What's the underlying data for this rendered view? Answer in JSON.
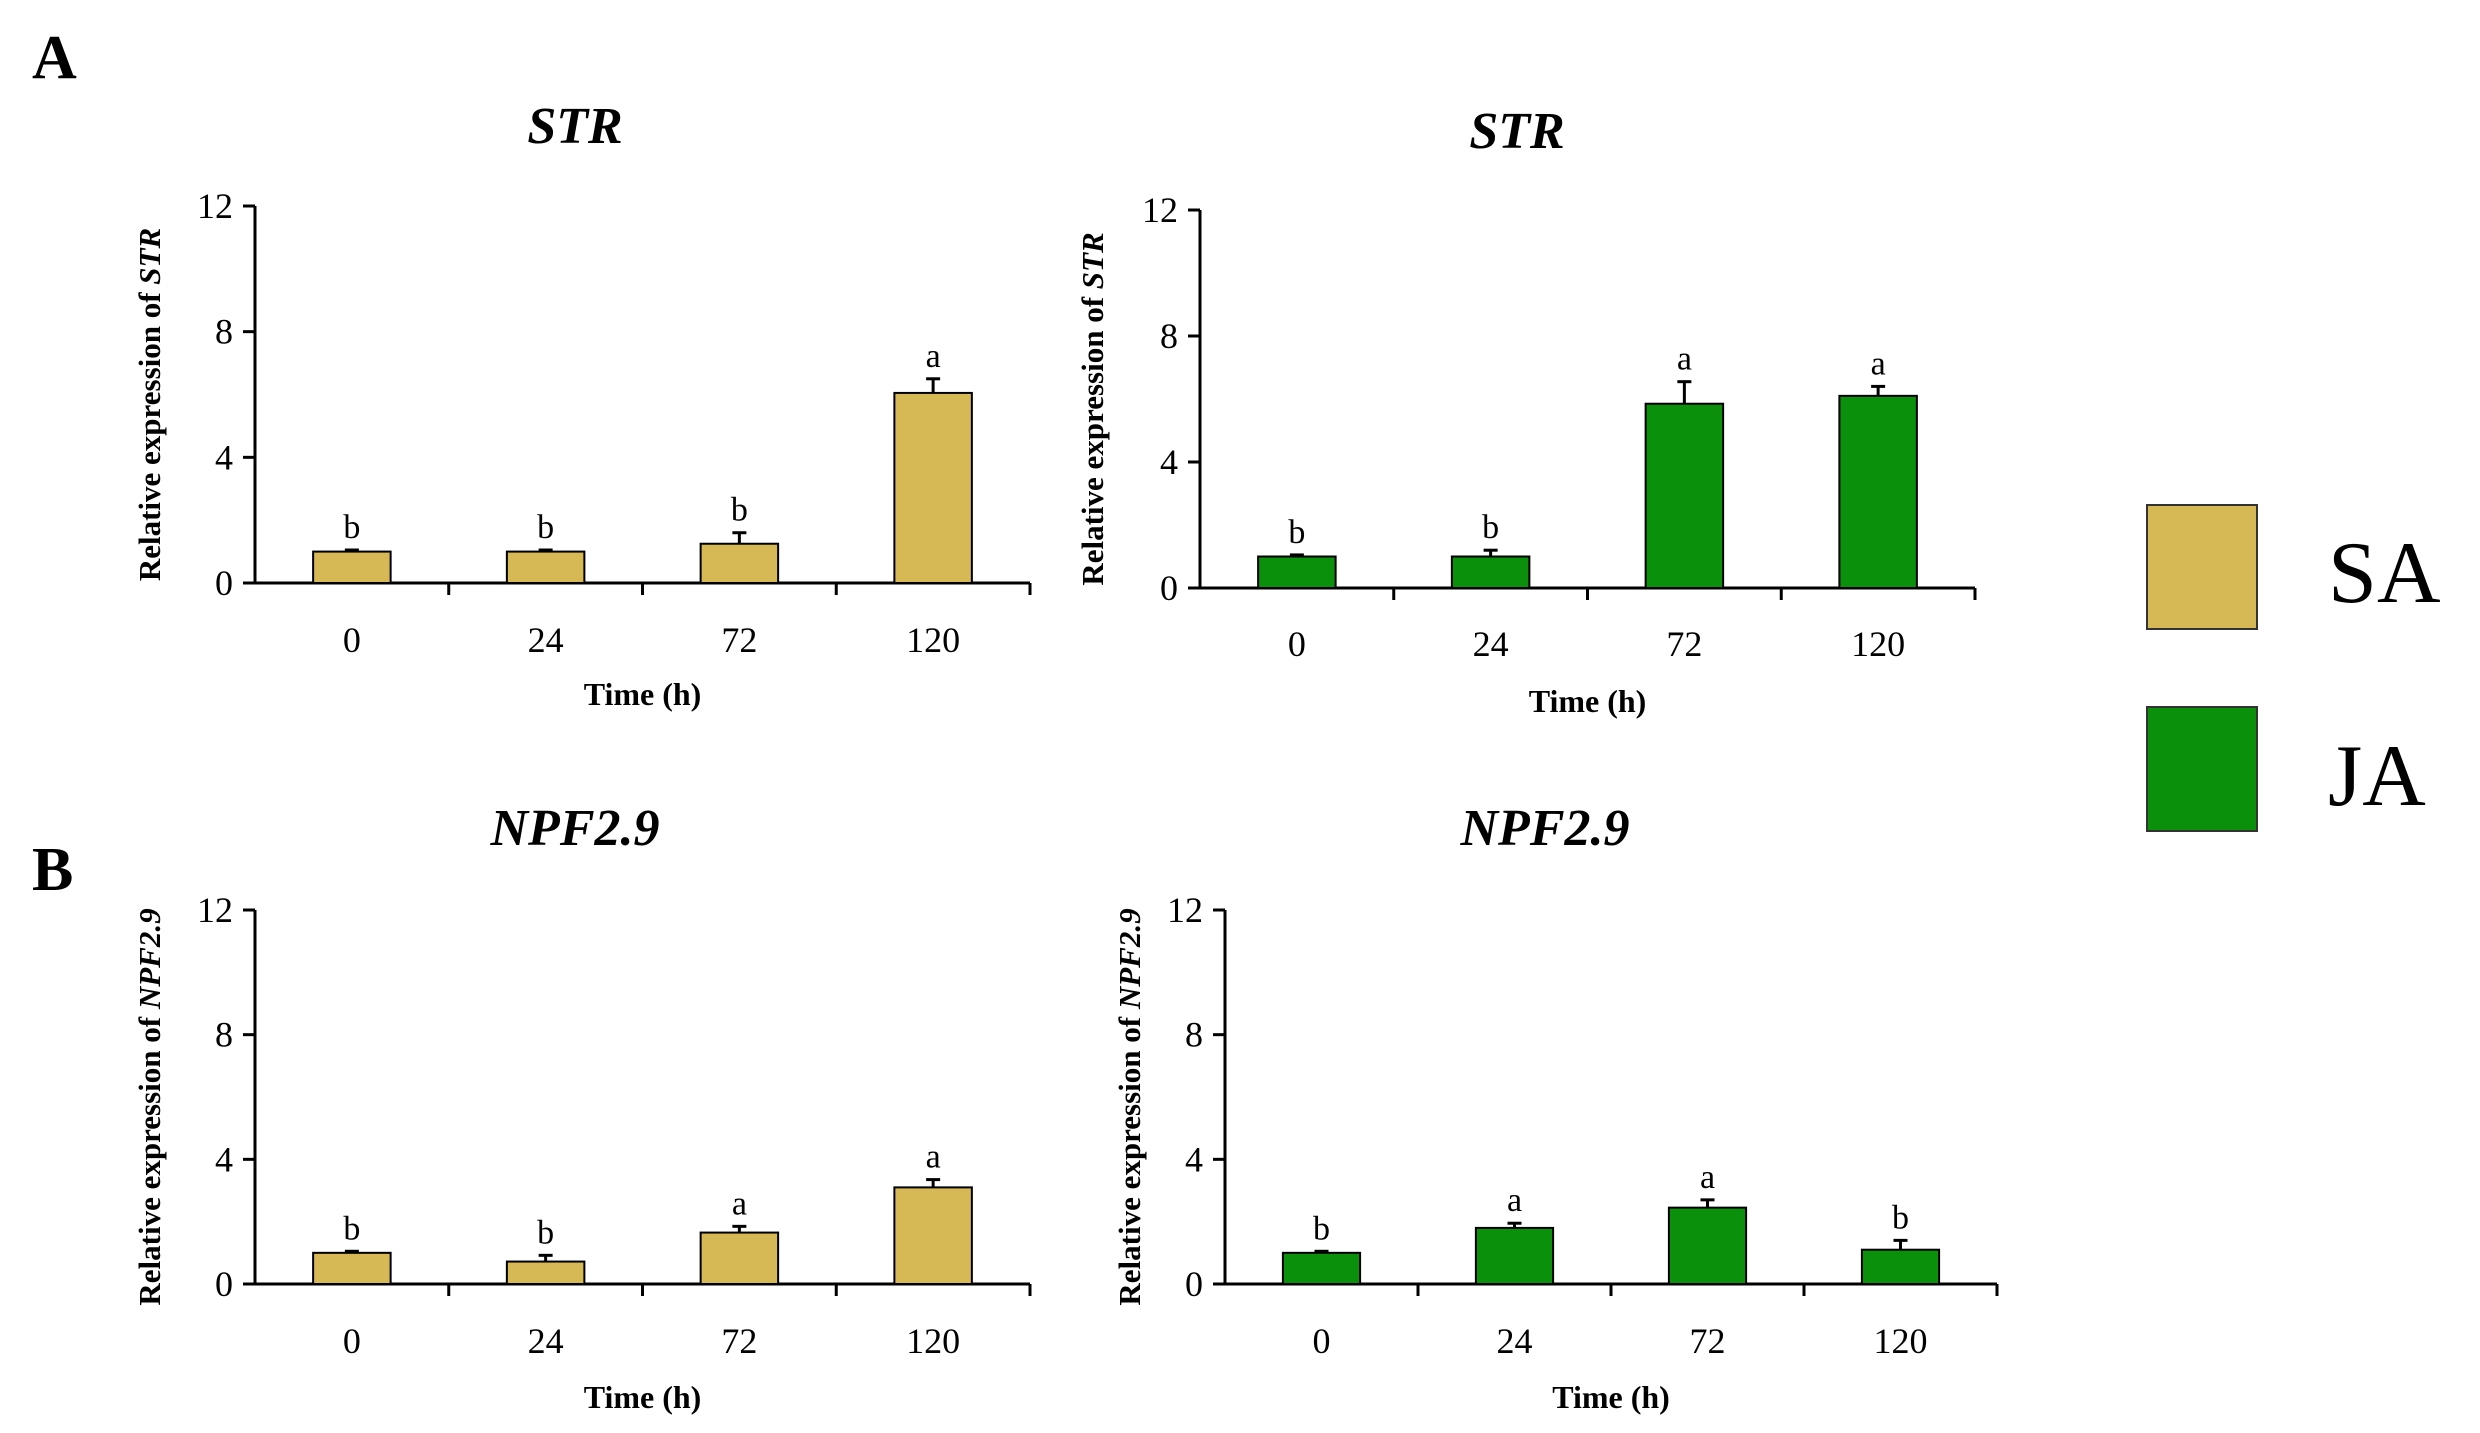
{
  "panels": [
    {
      "letter": "A"
    },
    {
      "letter": "B"
    }
  ],
  "legend": [
    {
      "label": "SA",
      "color": "#d6b855"
    },
    {
      "label": "JA",
      "color": "#0b900b"
    }
  ],
  "colors": {
    "SA": "#d6b855",
    "JA": "#0b900b",
    "axis": "#000000"
  },
  "chart_data": [
    {
      "type": "bar",
      "panel": "A",
      "treatment": "SA",
      "title": "STR",
      "xlabel": "Time (h)",
      "ylabel_prefix": "Relative expression of ",
      "ylabel_gene": "STR",
      "categories": [
        "0",
        "24",
        "72",
        "120"
      ],
      "values": [
        1.0,
        1.0,
        1.25,
        6.05
      ],
      "errors": [
        0.05,
        0.05,
        0.35,
        0.45
      ],
      "significance": [
        "b",
        "b",
        "b",
        "a"
      ],
      "ylim": [
        0,
        12
      ],
      "yticks": [
        0,
        4,
        8,
        12
      ],
      "color": "#d6b855"
    },
    {
      "type": "bar",
      "panel": "A",
      "treatment": "JA",
      "title": "STR",
      "xlabel": "Time (h)",
      "ylabel_prefix": "Relative expression of ",
      "ylabel_gene": "STR",
      "categories": [
        "0",
        "24",
        "72",
        "120"
      ],
      "values": [
        1.0,
        1.0,
        5.85,
        6.1
      ],
      "errors": [
        0.05,
        0.2,
        0.7,
        0.3
      ],
      "significance": [
        "b",
        "b",
        "a",
        "a"
      ],
      "ylim": [
        0,
        12
      ],
      "yticks": [
        0,
        4,
        8,
        12
      ],
      "color": "#0b900b"
    },
    {
      "type": "bar",
      "panel": "B",
      "treatment": "SA",
      "title": "NPF2.9",
      "xlabel": "Time (h)",
      "ylabel_prefix": "Relative expression of ",
      "ylabel_gene": "NPF2.9",
      "categories": [
        "0",
        "24",
        "72",
        "120"
      ],
      "values": [
        1.0,
        0.72,
        1.65,
        3.1
      ],
      "errors": [
        0.05,
        0.2,
        0.2,
        0.25
      ],
      "significance": [
        "b",
        "b",
        "a",
        "a"
      ],
      "ylim": [
        0,
        12
      ],
      "yticks": [
        0,
        4,
        8,
        12
      ],
      "color": "#d6b855"
    },
    {
      "type": "bar",
      "panel": "B",
      "treatment": "JA",
      "title": "NPF2.9",
      "xlabel": "Time (h)",
      "ylabel_prefix": "Relative expression of ",
      "ylabel_gene": "NPF2.9",
      "categories": [
        "0",
        "24",
        "72",
        "120"
      ],
      "values": [
        1.0,
        1.8,
        2.45,
        1.1
      ],
      "errors": [
        0.05,
        0.15,
        0.25,
        0.3
      ],
      "significance": [
        "b",
        "a",
        "a",
        "b"
      ],
      "ylim": [
        0,
        12
      ],
      "yticks": [
        0,
        4,
        8,
        12
      ],
      "color": "#0b900b"
    }
  ]
}
